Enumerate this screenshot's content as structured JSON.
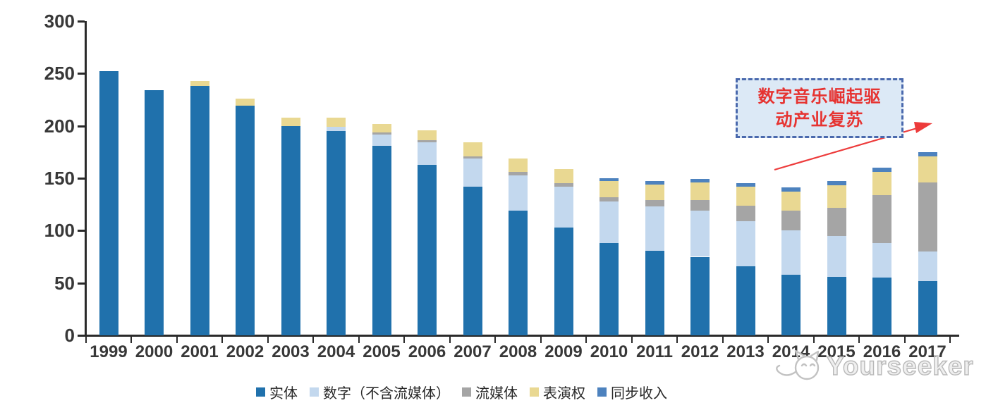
{
  "chart_data": {
    "type": "bar",
    "stacked": true,
    "title": "",
    "categories": [
      "1999",
      "2000",
      "2001",
      "2002",
      "2003",
      "2004",
      "2005",
      "2006",
      "2007",
      "2008",
      "2009",
      "2010",
      "2011",
      "2012",
      "2013",
      "2014",
      "2015",
      "2016",
      "2017"
    ],
    "series": [
      {
        "id": "physical",
        "name": "实体",
        "color": "#2071AC",
        "values": [
          252,
          234,
          238,
          219,
          200,
          195,
          181,
          163,
          142,
          119,
          103,
          88,
          81,
          75,
          66,
          58,
          56,
          55,
          52
        ]
      },
      {
        "id": "digital-ex-streaming",
        "name": "数字（不含流媒体）",
        "color": "#C3D8EE",
        "values": [
          0,
          0,
          0,
          0,
          0,
          4,
          11,
          21,
          27,
          34,
          39,
          40,
          42,
          44,
          43,
          42,
          39,
          33,
          28
        ]
      },
      {
        "id": "streaming",
        "name": "流媒体",
        "color": "#A5A5A5",
        "values": [
          0,
          0,
          0,
          0,
          0,
          0,
          2,
          2,
          2,
          3,
          3,
          4,
          6,
          10,
          15,
          19,
          27,
          46,
          66
        ]
      },
      {
        "id": "performance-rights",
        "name": "表演权",
        "color": "#E9D892",
        "values": [
          0,
          0,
          5,
          7,
          8,
          9,
          8,
          10,
          13,
          13,
          14,
          15,
          15,
          17,
          18,
          18,
          21,
          22,
          25
        ]
      },
      {
        "id": "sync-revenue",
        "name": "同步收入",
        "color": "#4D82BE",
        "values": [
          0,
          0,
          0,
          0,
          0,
          0,
          0,
          0,
          0,
          0,
          0,
          3,
          3,
          3,
          3,
          4,
          4,
          4,
          4
        ]
      }
    ],
    "xlabel": "",
    "ylabel": "",
    "ylim": [
      0,
      300
    ],
    "yticks": [
      0,
      50,
      100,
      150,
      200,
      250,
      300
    ],
    "grid": false,
    "legend_position": "bottom"
  },
  "annotation": {
    "line1": "数字音乐崛起驱",
    "line2": "动产业复苏"
  },
  "watermark": {
    "text": "Yourseeker"
  },
  "colors": {
    "axis": "#2a2a2a",
    "annotation_text": "#e63331",
    "annotation_fill": "#dce9f6",
    "annotation_border": "#4a69ad",
    "arrow": "#ed3b3b"
  }
}
